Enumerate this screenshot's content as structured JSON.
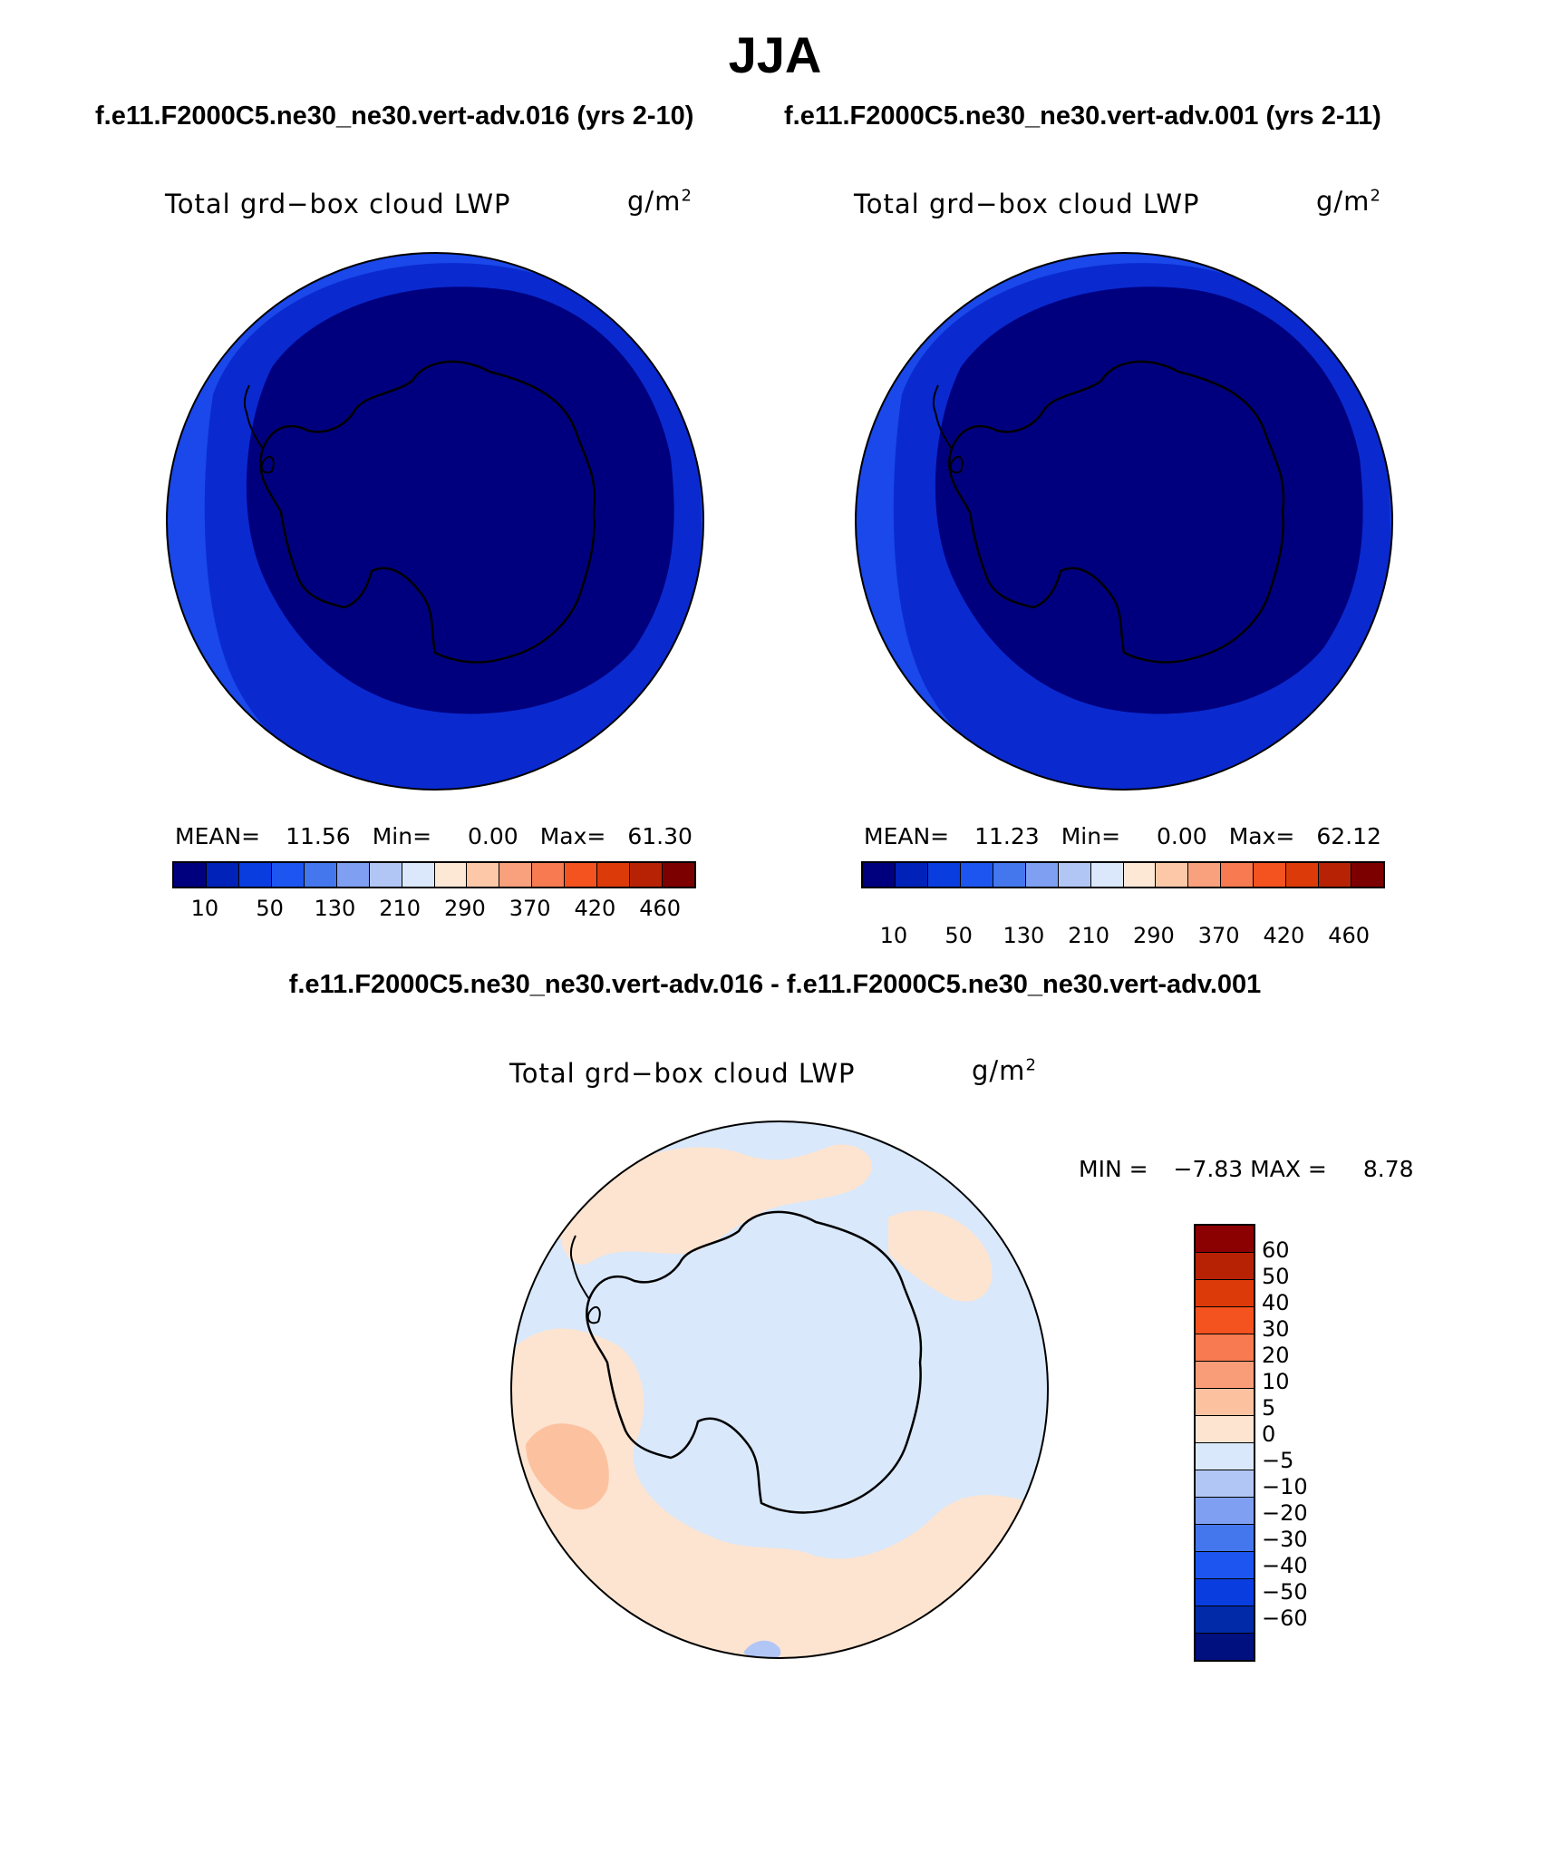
{
  "title": "JJA",
  "case1_header": "f.e11.F2000C5.ne30_ne30.vert-adv.016 (yrs 2-10)",
  "case2_header": "f.e11.F2000C5.ne30_ne30.vert-adv.001 (yrs 2-11)",
  "diff_header": "f.e11.F2000C5.ne30_ne30.vert-adv.016 - f.e11.F2000C5.ne30_ne30.vert-adv.001",
  "variable_name": "Total grd−box cloud LWP",
  "units_base": "g/m",
  "units_exp": "2",
  "panel1": {
    "mean_label": "MEAN=",
    "mean": "11.56",
    "min_label": "Min=",
    "min": "0.00",
    "max_label": "Max=",
    "max": "61.30"
  },
  "panel2": {
    "mean_label": "MEAN=",
    "mean": "11.23",
    "min_label": "Min=",
    "min": "0.00",
    "max_label": "Max=",
    "max": "62.12"
  },
  "diff_panel": {
    "min_label": "MIN =",
    "min": "−7.83",
    "max_label": "MAX =",
    "max": "8.78"
  },
  "colorbar_top": {
    "colors": [
      "#00007f",
      "#0022b8",
      "#0a3de0",
      "#1d55f0",
      "#4477ee",
      "#7f9ff2",
      "#b2c6f6",
      "#dbe8fb",
      "#fde8d6",
      "#fcc8a8",
      "#f9a07c",
      "#f77a50",
      "#f4521f",
      "#dd3a0a",
      "#b72205",
      "#7d0000"
    ],
    "labels": [
      "10",
      "50",
      "130",
      "210",
      "290",
      "370",
      "420",
      "460"
    ]
  },
  "colorbar_diff": {
    "colors": [
      "#00107f",
      "#002aa8",
      "#0a3de0",
      "#1d55f0",
      "#4477ee",
      "#7f9ff2",
      "#b2c6f6",
      "#d9e8fb",
      "#fde4d0",
      "#fcc2a0",
      "#f99c78",
      "#f77a50",
      "#f4521f",
      "#dd3a0a",
      "#b72205",
      "#8b0000"
    ],
    "labels": [
      "−60",
      "−50",
      "−40",
      "−30",
      "−20",
      "−10",
      "−5",
      "0",
      "5",
      "10",
      "20",
      "30",
      "40",
      "50",
      "60"
    ]
  },
  "map_colors": {
    "deep": "#00007f",
    "mid": "#0a2ad0",
    "outer": "#1a48ea",
    "diff_neg": "#d9e8fb",
    "diff_pos": "#fde4d0",
    "diff_pos_strong": "#fcc2a0",
    "diff_neg_strong": "#b2c6f6"
  }
}
